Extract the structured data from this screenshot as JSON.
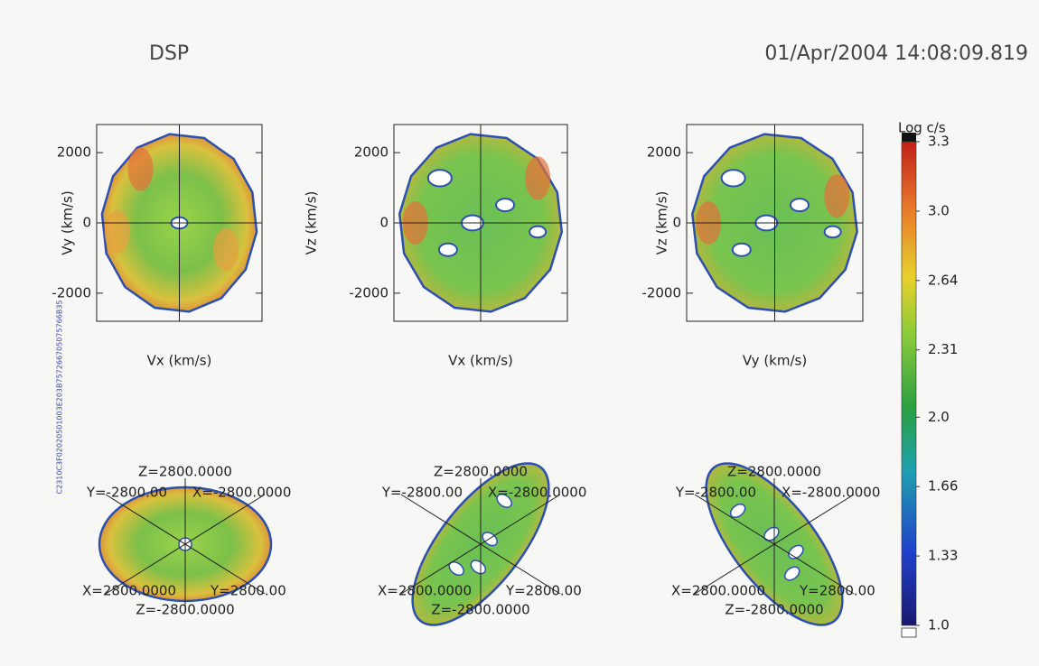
{
  "header": {
    "title": "DSP",
    "timestamp": "01/Apr/2004 14:08:09.819",
    "side_label": "C2310C3F02020501003E203B757266705075766B35"
  },
  "chart_data": [
    {
      "type": "heatmap",
      "xlabel": "Vx (km/s)",
      "ylabel": "Vy (km/s)",
      "xlim": [
        -2800,
        2800
      ],
      "ylim": [
        -2800,
        2800
      ],
      "yticks": [
        -2000,
        0,
        2000
      ]
    },
    {
      "type": "heatmap",
      "xlabel": "Vx (km/s)",
      "ylabel": "Vz (km/s)",
      "xlim": [
        -2800,
        2800
      ],
      "ylim": [
        -2800,
        2800
      ],
      "yticks": [
        -2000,
        0,
        2000
      ]
    },
    {
      "type": "heatmap",
      "xlabel": "Vy (km/s)",
      "ylabel": "Vz (km/s)",
      "xlim": [
        -2800,
        2800
      ],
      "ylim": [
        -2800,
        2800
      ],
      "yticks": [
        -2000,
        0,
        2000
      ]
    }
  ],
  "colorbar": {
    "title": "Log c/s",
    "lim": [
      1.0,
      3.3
    ],
    "ticks": [
      {
        "value": 1,
        "label": "1.0"
      },
      1.33,
      1.66,
      {
        "value": 1.99,
        "label": "2.0"
      },
      2.31,
      2.64,
      {
        "value": 2.97,
        "label": "3.0"
      },
      3.3
    ]
  },
  "projections": [
    {
      "labels": [
        "Z=2800.0000",
        "Y=-2800.00",
        "X=-2800.0000",
        "X=2800.0000",
        "Y=2800.00",
        "Z=-2800.0000"
      ]
    },
    {
      "labels": [
        "Z=2800.0000",
        "Y=-2800.00",
        "X=-2800.0000",
        "X=2800.0000",
        "Y=2800.00",
        "Z=-2800.0000"
      ]
    },
    {
      "labels": [
        "Z=2800.0000",
        "Y=-2800.00",
        "X=-2800.0000",
        "X=2800.0000",
        "Y=2800.00",
        "Z=-2800.0000"
      ]
    }
  ]
}
